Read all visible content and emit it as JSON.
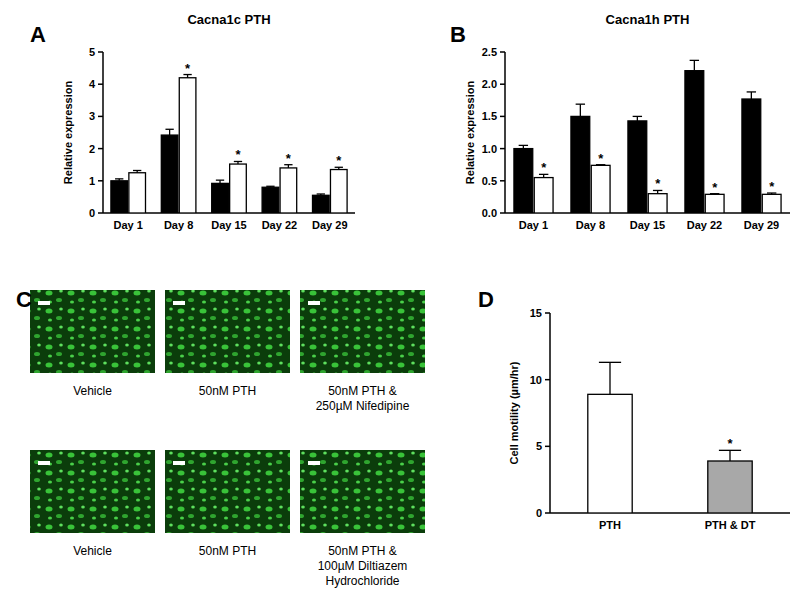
{
  "chart_data": [
    {
      "type": "bar",
      "label": "A",
      "title": "Cacna1c PTH",
      "y_label": "Relative expression",
      "categories": [
        "Day 1",
        "Day 8",
        "Day 15",
        "Day 22",
        "Day 29"
      ],
      "series": [
        {
          "color": "#000000",
          "values": [
            1.0,
            2.42,
            0.92,
            0.8,
            0.55
          ],
          "errors": [
            0.06,
            0.18,
            0.1,
            0.03,
            0.04
          ],
          "annotations": [
            null,
            null,
            null,
            null,
            null
          ]
        },
        {
          "color": "#ffffff",
          "values": [
            1.25,
            4.2,
            1.52,
            1.4,
            1.35
          ],
          "errors": [
            0.07,
            0.1,
            0.08,
            0.1,
            0.07
          ],
          "annotations": [
            null,
            "*",
            "*",
            "*",
            "*"
          ]
        }
      ],
      "ylim": [
        0,
        5
      ],
      "yticks": [
        0,
        1,
        2,
        3,
        4,
        5
      ]
    },
    {
      "type": "bar",
      "label": "B",
      "title": "Cacna1h PTH",
      "y_label": "Relative expression",
      "categories": [
        "Day 1",
        "Day 8",
        "Day 15",
        "Day 22",
        "Day 29"
      ],
      "series": [
        {
          "color": "#000000",
          "values": [
            1.0,
            1.5,
            1.43,
            2.21,
            1.77
          ],
          "errors": [
            0.05,
            0.19,
            0.07,
            0.16,
            0.11
          ],
          "annotations": [
            null,
            null,
            null,
            null,
            null
          ]
        },
        {
          "color": "#ffffff",
          "values": [
            0.55,
            0.74,
            0.3,
            0.29,
            0.29
          ],
          "errors": [
            0.05,
            0.01,
            0.05,
            0.01,
            0.02
          ],
          "annotations": [
            "*",
            "*",
            "*",
            "*",
            "*"
          ]
        }
      ],
      "ylim": [
        0,
        2.5
      ],
      "yticks": [
        {
          "value": 0,
          "label": "0.0"
        },
        0.5,
        {
          "value": 1,
          "label": "1.0"
        },
        1.5,
        {
          "value": 2,
          "label": "2.0"
        },
        2.5
      ]
    },
    {
      "type": "image",
      "label": "C",
      "images": [
        {
          "caption": [
            "Vehicle"
          ]
        },
        {
          "caption": [
            "50nM PTH"
          ]
        },
        {
          "caption": [
            "50nM PTH &",
            "250µM Nifedipine"
          ]
        },
        {
          "caption": [
            "Vehicle"
          ]
        },
        {
          "caption": [
            "50nM PTH"
          ]
        },
        {
          "caption": [
            "50nM PTH &",
            "100µM Diltiazem",
            "Hydrochloride"
          ]
        }
      ]
    },
    {
      "type": "bar",
      "label": "D",
      "y_label": "Cell motility (µm/hr)",
      "categories": [
        "PTH",
        "PTH & DT"
      ],
      "values": [
        8.9,
        3.9
      ],
      "errors": [
        2.4,
        0.8
      ],
      "colors": [
        "#ffffff",
        "#a8a8a8"
      ],
      "annotations": [
        null,
        "*"
      ],
      "ylim": [
        0,
        15
      ],
      "yticks": [
        0,
        5,
        10,
        15
      ]
    }
  ]
}
